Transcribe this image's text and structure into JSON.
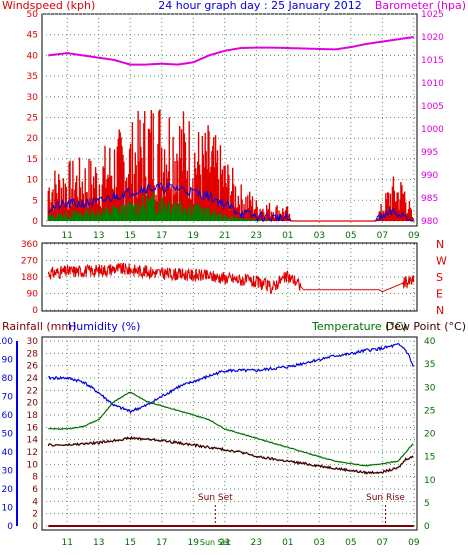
{
  "title": "24 hour graph day : 25 January 2012",
  "colors": {
    "red": "#e00000",
    "blue": "#0000e0",
    "green": "#008000",
    "magenta": "#e000e0",
    "brown": "#400000",
    "maroon": "#800000",
    "darkgreen": "#007000",
    "grid": "#6a8a6a"
  },
  "chart_data": [
    {
      "type": "line",
      "title": "24 hour graph day : 25 January 2012",
      "left_axis_label": "Windspeed (kph)",
      "right_axis_label": "Barometer (hpa)",
      "left_ylim": [
        0,
        50
      ],
      "left_ticks": [
        "0",
        "5",
        "10",
        "15",
        "20",
        "25",
        "30",
        "35",
        "40",
        "45",
        "50"
      ],
      "right_ylim": [
        980,
        1025
      ],
      "right_ticks": [
        "980",
        "985",
        "990",
        "995",
        "1000",
        "1005",
        "1010",
        "1015",
        "1020",
        "1025"
      ],
      "x_ticks": [
        "11",
        "13",
        "15",
        "17",
        "19",
        "21",
        "23",
        "01",
        "03",
        "05",
        "07",
        "09"
      ],
      "grid": true,
      "series": [
        {
          "name": "Gust",
          "color": "red",
          "kind": "noisy_fill",
          "x": [
            9.8,
            11,
            13,
            14,
            15,
            16,
            17,
            18,
            19,
            19.5,
            20,
            21,
            22,
            22.7,
            23,
            24,
            25,
            25.2,
            30.5,
            31.6,
            32.4,
            33
          ],
          "y": [
            7,
            8,
            9,
            12,
            13,
            16,
            17,
            16,
            14,
            12,
            13,
            9,
            5,
            4,
            3,
            2.5,
            2,
            0,
            0,
            6,
            6,
            0
          ]
        },
        {
          "name": "Average wind",
          "color": "blue",
          "kind": "noisy_line",
          "x": [
            9.8,
            11,
            13,
            14,
            15,
            16,
            17,
            18,
            19,
            20,
            21,
            22,
            23,
            24,
            25,
            25.2,
            30.5,
            31.6,
            32.4,
            33
          ],
          "y": [
            3,
            4,
            4.5,
            6,
            7,
            8,
            8,
            8,
            7,
            6,
            4,
            2,
            1,
            0.8,
            0.5,
            0,
            0,
            2,
            1.5,
            0
          ]
        },
        {
          "name": "Speed",
          "color": "green",
          "kind": "noisy_fill",
          "x": [
            9.8,
            11,
            13,
            14,
            15,
            16,
            17,
            18,
            19,
            20,
            21,
            22,
            23,
            24
          ],
          "y": [
            1,
            1.5,
            2,
            2.5,
            3,
            4,
            4.5,
            4,
            3,
            2,
            1,
            0.5,
            0.3,
            0
          ]
        },
        {
          "name": "Barometer",
          "color": "magenta",
          "axis": "right",
          "x": [
            9.8,
            11,
            13,
            14,
            15,
            16,
            17,
            18,
            19,
            20,
            21,
            22,
            23,
            24,
            25,
            26,
            27,
            28,
            29,
            30,
            31,
            32,
            33
          ],
          "y": [
            1016,
            1016.5,
            1015.5,
            1015,
            1014,
            1014,
            1014.2,
            1014,
            1014.5,
            1016,
            1017,
            1017.6,
            1017.7,
            1017.7,
            1017.6,
            1017.5,
            1017.4,
            1017.3,
            1017.8,
            1018.5,
            1019,
            1019.5,
            1020
          ]
        }
      ]
    },
    {
      "type": "line",
      "left_ylim": [
        0,
        360
      ],
      "left_ticks": [
        "0",
        "90",
        "180",
        "270",
        "360"
      ],
      "right_labels": [
        "N",
        "W",
        "S",
        "E",
        "N"
      ],
      "grid": true,
      "series": [
        {
          "name": "Wind direction",
          "color": "red",
          "kind": "noisy_line",
          "x": [
            9.8,
            11,
            13,
            14,
            15,
            16,
            17,
            18,
            19,
            20,
            21,
            22,
            23,
            23.5,
            24,
            24.5,
            25,
            25.5,
            26,
            30.5,
            30.8,
            31,
            32.4,
            33
          ],
          "y": [
            200,
            210,
            215,
            225,
            220,
            210,
            200,
            195,
            190,
            185,
            175,
            165,
            150,
            140,
            120,
            160,
            180,
            160,
            110,
            110,
            110,
            100,
            150,
            160
          ]
        }
      ]
    },
    {
      "type": "line",
      "left_axis_label": "Rainfall (mm)",
      "middle_axis_label": "Humidity (%)",
      "right_axis_label": "Temperature (°C)",
      "right_axis_label_2": "Dew Point (°C)",
      "rain_ylim": [
        0,
        100
      ],
      "rain_ticks": [
        "0",
        "10",
        "20",
        "30",
        "40",
        "50",
        "60",
        "70",
        "80",
        "90",
        "100"
      ],
      "humidity_ylim": [
        0,
        30
      ],
      "humidity_ticks": [
        "0",
        "2",
        "4",
        "6",
        "8",
        "10",
        "12",
        "14",
        "16",
        "18",
        "20",
        "22",
        "24",
        "26",
        "28",
        "30"
      ],
      "temp_ylim": [
        0,
        40
      ],
      "temp_ticks": [
        "0",
        "5",
        "10",
        "15",
        "20",
        "25",
        "30",
        "35",
        "40"
      ],
      "x_ticks": [
        "11",
        "13",
        "15",
        "17",
        "19",
        "Sun Set",
        "21",
        "23",
        "01",
        "03",
        "05",
        "07",
        "09"
      ],
      "annotations": [
        "Sun Set",
        "Sun Rise"
      ],
      "sunset_hour": 20.4,
      "sunrise_hour": 31.2,
      "grid": true,
      "series": [
        {
          "name": "Humidity",
          "color": "blue",
          "axis": "rain",
          "x": [
            9.8,
            11,
            12,
            13,
            14,
            15,
            16,
            17,
            18,
            19,
            20,
            21,
            22,
            23,
            24,
            25,
            26,
            27,
            28,
            29,
            30,
            31,
            32,
            32.4,
            32.7,
            33
          ],
          "y": [
            80,
            80,
            78,
            72,
            65,
            62,
            65,
            70,
            75,
            78,
            81,
            84,
            84,
            84,
            85,
            86,
            88,
            90,
            92,
            93,
            95,
            96,
            98,
            96,
            92,
            85
          ]
        },
        {
          "name": "Temperature",
          "color": "green",
          "axis": "temp",
          "x": [
            9.8,
            11,
            12,
            13,
            14,
            15,
            16,
            17,
            18,
            19,
            20,
            21,
            22,
            23,
            24,
            25,
            26,
            27,
            28,
            29,
            30,
            31,
            32,
            32.5,
            33
          ],
          "y": [
            21,
            21,
            21.5,
            23,
            27,
            29,
            27,
            26,
            25,
            24,
            23,
            21,
            20,
            19,
            18,
            17,
            16,
            15,
            14,
            13.5,
            13,
            13.5,
            14,
            16,
            18
          ]
        },
        {
          "name": "Dew Point",
          "color": "brown",
          "axis": "temp",
          "x": [
            9.8,
            11,
            13,
            14,
            15,
            16,
            17,
            18,
            19,
            20,
            21,
            22,
            23,
            24,
            25,
            26,
            27,
            28,
            29,
            30,
            31,
            32,
            32.5,
            33
          ],
          "y": [
            17.5,
            17.5,
            18,
            18.5,
            19,
            18.8,
            18.5,
            18,
            17.5,
            17,
            16.5,
            16,
            15,
            14.5,
            14,
            13.5,
            13,
            12.5,
            12,
            11.5,
            11.7,
            12.5,
            14.5,
            15
          ]
        },
        {
          "name": "Rainfall",
          "color": "maroon",
          "axis": "rain",
          "x": [
            9.8,
            33
          ],
          "y": [
            0,
            0
          ]
        }
      ]
    }
  ]
}
